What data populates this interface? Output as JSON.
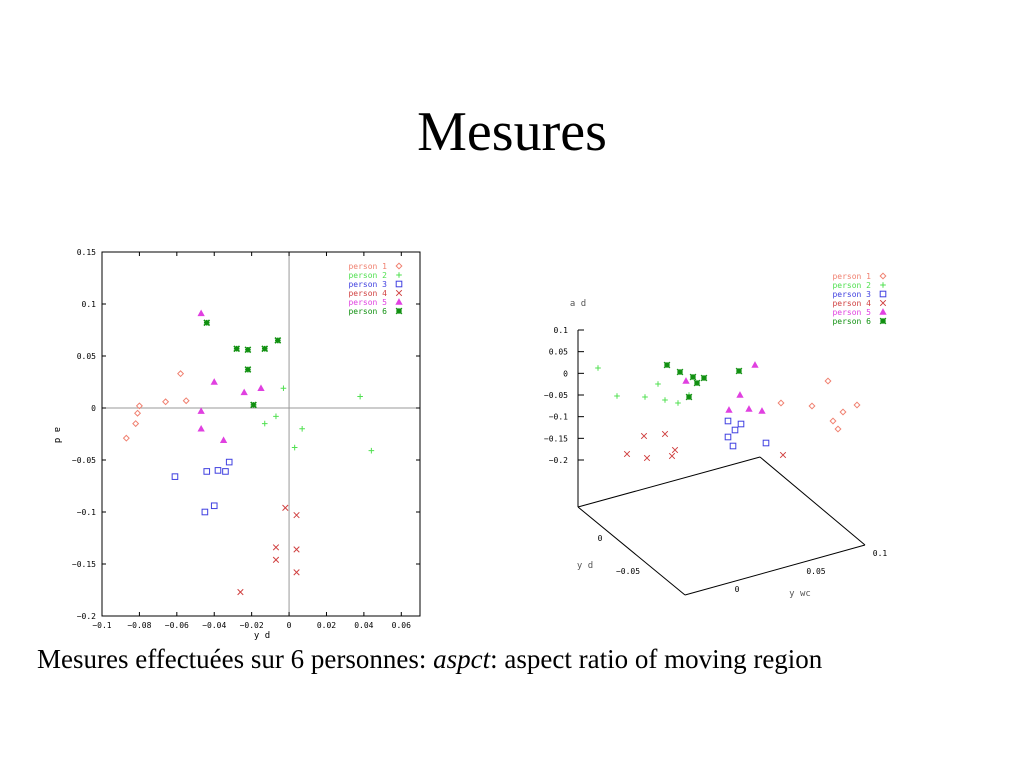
{
  "slide": {
    "title": "Mesures",
    "caption_prefix": "Mesures effectuées sur 6 personnes: ",
    "caption_term": "aspct",
    "caption_suffix": ": aspect ratio of moving region"
  },
  "chart_data": [
    {
      "type": "scatter",
      "xlabel": "y d",
      "ylabel": "a d",
      "xlim": [
        -0.1,
        0.07
      ],
      "ylim": [
        -0.2,
        0.15
      ],
      "xticks": [
        -0.1,
        -0.08,
        -0.06,
        -0.04,
        -0.02,
        0,
        0.02,
        0.04,
        0.06
      ],
      "xtick_labels": [
        "−0.1",
        "−0.08",
        "−0.06",
        "−0.04",
        "−0.02",
        "0",
        "0.02",
        "0.04",
        "0.06"
      ],
      "yticks": [
        -0.2,
        -0.15,
        -0.1,
        -0.05,
        0,
        0.05,
        0.1,
        0.15
      ],
      "ytick_labels": [
        "−0.2",
        "−0.15",
        "−0.1",
        "−0.05",
        "0",
        "0.05",
        "0.1",
        "0.15"
      ],
      "grid": false,
      "zero_lines": true,
      "legend_position": "top-right",
      "series": [
        {
          "name": "person 1",
          "marker": "diamond",
          "color": "#f08070",
          "points": [
            [
              -0.087,
              -0.029
            ],
            [
              -0.082,
              -0.015
            ],
            [
              -0.081,
              -0.005
            ],
            [
              -0.08,
              0.002
            ],
            [
              -0.066,
              0.006
            ],
            [
              -0.058,
              0.033
            ],
            [
              -0.055,
              0.007
            ]
          ]
        },
        {
          "name": "person 2",
          "marker": "plus",
          "color": "#50e050",
          "points": [
            [
              -0.013,
              -0.015
            ],
            [
              -0.007,
              -0.008
            ],
            [
              -0.003,
              0.019
            ],
            [
              0.003,
              -0.038
            ],
            [
              0.007,
              -0.02
            ],
            [
              0.038,
              0.011
            ],
            [
              0.044,
              -0.041
            ]
          ]
        },
        {
          "name": "person 3",
          "marker": "square",
          "color": "#4040e0",
          "points": [
            [
              -0.061,
              -0.066
            ],
            [
              -0.045,
              -0.1
            ],
            [
              -0.044,
              -0.061
            ],
            [
              -0.04,
              -0.094
            ],
            [
              -0.038,
              -0.06
            ],
            [
              -0.034,
              -0.061
            ],
            [
              -0.032,
              -0.052
            ]
          ]
        },
        {
          "name": "person 4",
          "marker": "cross",
          "color": "#d04040",
          "points": [
            [
              -0.026,
              -0.177
            ],
            [
              -0.007,
              -0.134
            ],
            [
              -0.007,
              -0.146
            ],
            [
              -0.002,
              -0.096
            ],
            [
              0.004,
              -0.103
            ],
            [
              0.004,
              -0.136
            ],
            [
              0.004,
              -0.158
            ]
          ]
        },
        {
          "name": "person 5",
          "marker": "triangle",
          "color": "#e040e0",
          "points": [
            [
              -0.047,
              0.091
            ],
            [
              -0.047,
              -0.003
            ],
            [
              -0.047,
              -0.02
            ],
            [
              -0.04,
              0.025
            ],
            [
              -0.035,
              -0.031
            ],
            [
              -0.024,
              0.015
            ],
            [
              -0.015,
              0.019
            ]
          ]
        },
        {
          "name": "person 6",
          "marker": "star",
          "color": "#109010",
          "points": [
            [
              -0.044,
              0.082
            ],
            [
              -0.028,
              0.057
            ],
            [
              -0.022,
              0.056
            ],
            [
              -0.022,
              0.037
            ],
            [
              -0.019,
              0.003
            ],
            [
              -0.013,
              0.057
            ],
            [
              -0.006,
              0.065
            ]
          ]
        }
      ]
    },
    {
      "type": "scatter",
      "projection": "3d",
      "zlabel": "a d",
      "xlabel": "y wc",
      "ylabel": "y d",
      "zticks": [
        0.1,
        0.05,
        0,
        -0.05,
        -0.1,
        -0.15,
        -0.2
      ],
      "ztick_labels": [
        "0.1",
        "0.05",
        "0",
        "−0.05",
        "−0.1",
        "−0.15",
        "−0.2"
      ],
      "xtick_labels": [
        "0",
        "0.05",
        "0.1"
      ],
      "ytick_labels": [
        "0",
        "−0.05"
      ],
      "legend_position": "top-right",
      "series": [
        {
          "name": "person 1",
          "marker": "diamond",
          "color": "#f08070"
        },
        {
          "name": "person 2",
          "marker": "plus",
          "color": "#50e050"
        },
        {
          "name": "person 3",
          "marker": "square",
          "color": "#4040e0"
        },
        {
          "name": "person 4",
          "marker": "cross",
          "color": "#d04040"
        },
        {
          "name": "person 5",
          "marker": "triangle",
          "color": "#e040e0"
        },
        {
          "name": "person 6",
          "marker": "star",
          "color": "#109010"
        }
      ]
    }
  ]
}
